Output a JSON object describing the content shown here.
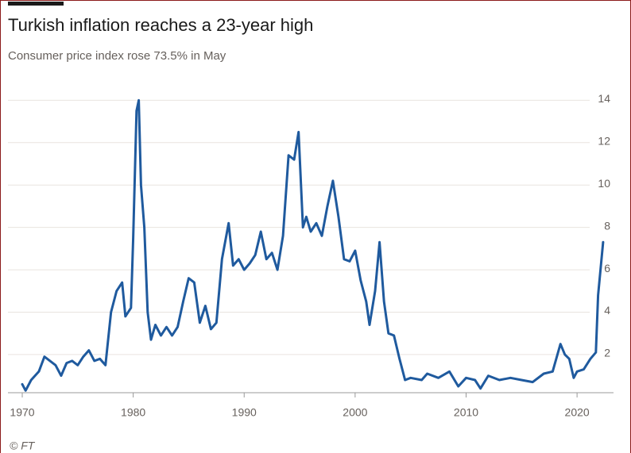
{
  "chart_data": {
    "type": "line",
    "title": "Turkish inflation reaches a 23-year high",
    "subtitle": "Consumer price index rose 73.5% in May",
    "source": "© FT",
    "x": [
      1970.0,
      1970.3,
      1970.8,
      1971.5,
      1972.0,
      1972.5,
      1973.0,
      1973.5,
      1974.0,
      1974.5,
      1975.0,
      1975.5,
      1976.0,
      1976.5,
      1977.0,
      1977.5,
      1978.0,
      1978.5,
      1979.0,
      1979.3,
      1979.8,
      1980.0,
      1980.3,
      1980.5,
      1980.7,
      1981.0,
      1981.3,
      1981.6,
      1982.0,
      1982.5,
      1983.0,
      1983.5,
      1984.0,
      1984.5,
      1985.0,
      1985.5,
      1986.0,
      1986.5,
      1987.0,
      1987.5,
      1988.0,
      1988.6,
      1989.0,
      1989.5,
      1990.0,
      1990.5,
      1991.0,
      1991.5,
      1992.0,
      1992.5,
      1993.0,
      1993.5,
      1994.0,
      1994.5,
      1994.9,
      1995.3,
      1995.6,
      1996.0,
      1996.5,
      1997.0,
      1997.5,
      1998.0,
      1998.5,
      1999.0,
      1999.5,
      2000.0,
      2000.5,
      2001.0,
      2001.3,
      2001.8,
      2002.2,
      2002.6,
      2003.0,
      2003.5,
      2004.0,
      2004.5,
      2005.0,
      2006.0,
      2006.5,
      2007.5,
      2008.5,
      2009.3,
      2010.0,
      2010.8,
      2011.3,
      2012.0,
      2013.0,
      2014.0,
      2015.0,
      2016.0,
      2017.0,
      2017.8,
      2018.5,
      2018.9,
      2019.3,
      2019.7,
      2020.0,
      2020.6,
      2021.2,
      2021.7,
      2021.9,
      2022.35
    ],
    "series": [
      {
        "color": "#1f5a9e",
        "values": [
          0.6,
          0.3,
          0.8,
          1.2,
          1.9,
          1.7,
          1.5,
          1.0,
          1.6,
          1.7,
          1.5,
          1.9,
          2.2,
          1.7,
          1.8,
          1.5,
          4.0,
          5.0,
          5.4,
          3.8,
          4.2,
          7.5,
          13.5,
          14.0,
          10.0,
          8.0,
          4.0,
          2.7,
          3.4,
          2.9,
          3.3,
          2.9,
          3.3,
          4.5,
          5.6,
          5.4,
          3.5,
          4.3,
          3.2,
          3.5,
          6.5,
          8.2,
          6.2,
          6.5,
          6.0,
          6.3,
          6.7,
          7.8,
          6.5,
          6.8,
          6.0,
          7.6,
          11.4,
          11.2,
          12.5,
          8.0,
          8.5,
          7.8,
          8.2,
          7.6,
          9.0,
          10.2,
          8.5,
          6.5,
          6.4,
          6.9,
          5.5,
          4.5,
          3.4,
          5.0,
          7.3,
          4.5,
          3.0,
          2.9,
          1.8,
          0.8,
          0.9,
          0.8,
          1.1,
          0.9,
          1.2,
          0.5,
          0.9,
          0.8,
          0.4,
          1.0,
          0.8,
          0.9,
          0.8,
          0.7,
          1.1,
          1.2,
          2.5,
          2.0,
          1.8,
          0.9,
          1.2,
          1.3,
          1.8,
          2.1,
          4.8,
          7.3
        ]
      }
    ],
    "xlim": [
      1970,
      2023
    ],
    "ylim": [
      0.2,
      14.5
    ],
    "xticks": [
      1970,
      1980,
      1990,
      2000,
      2010,
      2020
    ],
    "yticks": [
      2,
      4,
      6,
      8,
      10,
      12,
      14
    ],
    "grid": true
  }
}
